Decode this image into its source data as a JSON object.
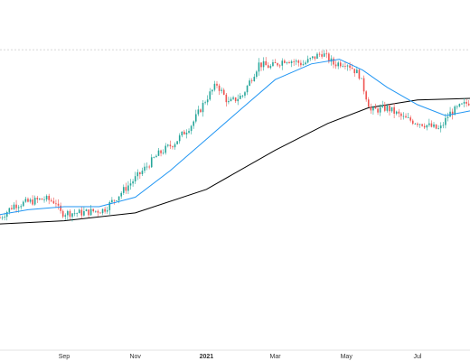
{
  "chart_data": {
    "type": "candlestick",
    "title": "",
    "xlabel": "",
    "ylabel": "",
    "grid": false,
    "legend": "none",
    "x_range": [
      "2020-07-08",
      "2021-08-15"
    ],
    "x_ticks": [
      {
        "date": "2020-09-01",
        "label": "Sep",
        "bold": false
      },
      {
        "date": "2020-11-01",
        "label": "Nov",
        "bold": false
      },
      {
        "date": "2021-01-01",
        "label": "2021",
        "bold": true
      },
      {
        "date": "2021-03-01",
        "label": "Mar",
        "bold": false
      },
      {
        "date": "2021-05-01",
        "label": "May",
        "bold": false
      },
      {
        "date": "2021-07-01",
        "label": "Jul",
        "bold": false
      }
    ],
    "price_path": [
      [
        "2020-07-08",
        12
      ],
      [
        "2020-07-20",
        20
      ],
      [
        "2020-08-15",
        24
      ],
      [
        "2020-08-25",
        22
      ],
      [
        "2020-08-28",
        15
      ],
      [
        "2020-09-15",
        15
      ],
      [
        "2020-10-05",
        17
      ],
      [
        "2020-10-20",
        28
      ],
      [
        "2020-11-05",
        40
      ],
      [
        "2020-11-20",
        52
      ],
      [
        "2020-12-05",
        60
      ],
      [
        "2020-12-20",
        72
      ],
      [
        "2021-01-01",
        88
      ],
      [
        "2021-01-10",
        97
      ],
      [
        "2021-01-20",
        85
      ],
      [
        "2021-02-01",
        90
      ],
      [
        "2021-02-15",
        110
      ],
      [
        "2021-02-25",
        108
      ],
      [
        "2021-03-10",
        113
      ],
      [
        "2021-03-25",
        110
      ],
      [
        "2021-04-10",
        117
      ],
      [
        "2021-04-20",
        110
      ],
      [
        "2021-05-01",
        111
      ],
      [
        "2021-05-12",
        103
      ],
      [
        "2021-05-22",
        80
      ],
      [
        "2021-06-05",
        82
      ],
      [
        "2021-06-20",
        75
      ],
      [
        "2021-07-05",
        72
      ],
      [
        "2021-07-20",
        68
      ],
      [
        "2021-07-28",
        78
      ],
      [
        "2021-08-05",
        82
      ],
      [
        "2021-08-15",
        86
      ]
    ],
    "series": [
      {
        "kind": "candles",
        "up_color": "#26a69a",
        "down_color": "#ef5350"
      },
      {
        "kind": "moving-average-short",
        "color": "#2196f3",
        "points": [
          [
            "2020-07-08",
            14
          ],
          [
            "2020-08-01",
            17
          ],
          [
            "2020-09-01",
            19
          ],
          [
            "2020-10-01",
            19
          ],
          [
            "2020-11-01",
            25
          ],
          [
            "2020-12-01",
            42
          ],
          [
            "2021-01-01",
            62
          ],
          [
            "2021-02-01",
            82
          ],
          [
            "2021-03-01",
            100
          ],
          [
            "2021-04-01",
            110
          ],
          [
            "2021-04-25",
            113
          ],
          [
            "2021-05-15",
            106
          ],
          [
            "2021-06-05",
            95
          ],
          [
            "2021-07-01",
            84
          ],
          [
            "2021-07-25",
            77
          ],
          [
            "2021-08-15",
            80
          ]
        ]
      },
      {
        "kind": "moving-average-long",
        "color": "#000000",
        "points": [
          [
            "2020-07-08",
            8
          ],
          [
            "2020-09-01",
            10
          ],
          [
            "2020-11-01",
            15
          ],
          [
            "2021-01-01",
            30
          ],
          [
            "2021-03-01",
            55
          ],
          [
            "2021-04-15",
            72
          ],
          [
            "2021-05-20",
            82
          ],
          [
            "2021-07-01",
            87
          ],
          [
            "2021-08-15",
            88
          ]
        ]
      }
    ],
    "y_range": [
      0,
      130
    ],
    "reference_line": {
      "value": 119,
      "color": "#d6d6d6",
      "style": "dashed"
    }
  }
}
